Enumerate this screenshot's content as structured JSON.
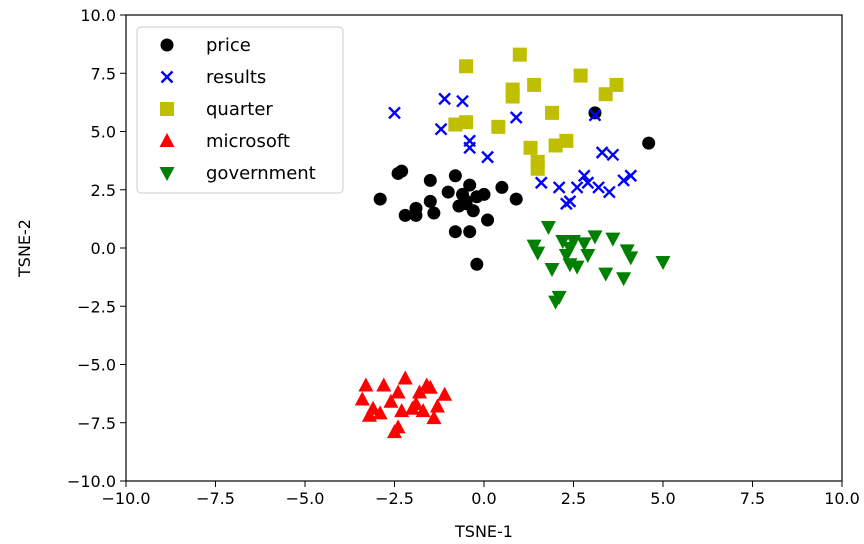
{
  "chart_data": {
    "type": "scatter",
    "title": "",
    "xlabel": "TSNE-1",
    "ylabel": "TSNE-2",
    "xlim": [
      -10.0,
      10.0
    ],
    "ylim": [
      -10.0,
      10.0
    ],
    "xticks": [
      "−10.0",
      "−7.5",
      "−5.0",
      "−2.5",
      "0.0",
      "2.5",
      "5.0",
      "7.5",
      "10.0"
    ],
    "yticks": [
      "−10.0",
      "−7.5",
      "−5.0",
      "−2.5",
      "0.0",
      "2.5",
      "5.0",
      "7.5",
      "10.0"
    ],
    "grid": false,
    "legend_position": "top-left",
    "series": [
      {
        "name": "price",
        "marker": "circle",
        "color": "#000000",
        "points": [
          [
            -2.3,
            3.3
          ],
          [
            -2.4,
            3.2
          ],
          [
            -1.5,
            2.9
          ],
          [
            -0.8,
            3.1
          ],
          [
            -0.4,
            2.7
          ],
          [
            0.5,
            2.6
          ],
          [
            -2.9,
            2.1
          ],
          [
            -1.9,
            1.7
          ],
          [
            -1.5,
            2.0
          ],
          [
            -1.0,
            2.4
          ],
          [
            -0.6,
            2.3
          ],
          [
            -0.2,
            2.2
          ],
          [
            0.0,
            2.3
          ],
          [
            0.9,
            2.1
          ],
          [
            -0.5,
            1.9
          ],
          [
            -0.7,
            1.8
          ],
          [
            -0.3,
            1.6
          ],
          [
            -2.2,
            1.4
          ],
          [
            -1.9,
            1.4
          ],
          [
            -1.4,
            1.5
          ],
          [
            0.1,
            1.2
          ],
          [
            -0.8,
            0.7
          ],
          [
            -0.4,
            0.7
          ],
          [
            -0.2,
            -0.7
          ],
          [
            -0.5,
            2.0
          ],
          [
            3.1,
            5.8
          ],
          [
            4.6,
            4.5
          ]
        ]
      },
      {
        "name": "results",
        "marker": "x",
        "color": "#0000ff",
        "points": [
          [
            -2.5,
            5.8
          ],
          [
            -1.1,
            6.4
          ],
          [
            -0.6,
            6.3
          ],
          [
            0.9,
            5.6
          ],
          [
            3.1,
            5.7
          ],
          [
            -1.2,
            5.1
          ],
          [
            -0.4,
            4.6
          ],
          [
            -0.4,
            4.3
          ],
          [
            0.1,
            3.9
          ],
          [
            3.3,
            4.1
          ],
          [
            3.6,
            4.0
          ],
          [
            1.6,
            2.8
          ],
          [
            2.1,
            2.6
          ],
          [
            2.6,
            2.6
          ],
          [
            2.9,
            2.8
          ],
          [
            3.2,
            2.6
          ],
          [
            2.8,
            3.1
          ],
          [
            3.5,
            2.4
          ],
          [
            3.9,
            2.9
          ],
          [
            4.1,
            3.1
          ],
          [
            2.3,
            1.9
          ],
          [
            2.4,
            2.0
          ]
        ]
      },
      {
        "name": "quarter",
        "marker": "square",
        "color": "#bfbf00",
        "points": [
          [
            -0.5,
            7.8
          ],
          [
            1.0,
            8.3
          ],
          [
            2.7,
            7.4
          ],
          [
            1.4,
            7.0
          ],
          [
            3.7,
            7.0
          ],
          [
            3.4,
            6.6
          ],
          [
            0.8,
            6.8
          ],
          [
            0.8,
            6.5
          ],
          [
            -0.5,
            5.4
          ],
          [
            -0.8,
            5.3
          ],
          [
            0.4,
            5.2
          ],
          [
            1.9,
            5.8
          ],
          [
            1.3,
            4.3
          ],
          [
            2.0,
            4.4
          ],
          [
            2.3,
            4.6
          ],
          [
            1.5,
            3.7
          ],
          [
            1.5,
            3.4
          ]
        ]
      },
      {
        "name": "microsoft",
        "marker": "triangle-up",
        "color": "#ff0000",
        "points": [
          [
            -2.2,
            -5.6
          ],
          [
            -1.6,
            -5.9
          ],
          [
            -1.5,
            -6.0
          ],
          [
            -2.8,
            -5.9
          ],
          [
            -3.3,
            -5.9
          ],
          [
            -2.4,
            -6.2
          ],
          [
            -1.8,
            -6.2
          ],
          [
            -1.1,
            -6.3
          ],
          [
            -3.4,
            -6.5
          ],
          [
            -2.6,
            -6.6
          ],
          [
            -1.9,
            -6.7
          ],
          [
            -1.3,
            -6.8
          ],
          [
            -3.1,
            -6.9
          ],
          [
            -2.3,
            -7.0
          ],
          [
            -2.0,
            -6.9
          ],
          [
            -1.7,
            -7.0
          ],
          [
            -2.9,
            -7.1
          ],
          [
            -3.2,
            -7.2
          ],
          [
            -1.4,
            -7.3
          ],
          [
            -2.5,
            -7.9
          ],
          [
            -2.4,
            -7.7
          ]
        ]
      },
      {
        "name": "government",
        "marker": "triangle-down",
        "color": "#008000",
        "points": [
          [
            1.8,
            0.9
          ],
          [
            3.1,
            0.5
          ],
          [
            3.6,
            0.4
          ],
          [
            2.2,
            0.3
          ],
          [
            2.5,
            0.3
          ],
          [
            2.8,
            0.2
          ],
          [
            1.4,
            0.1
          ],
          [
            2.4,
            0.0
          ],
          [
            4.0,
            -0.1
          ],
          [
            1.5,
            -0.2
          ],
          [
            2.3,
            -0.3
          ],
          [
            2.9,
            -0.3
          ],
          [
            4.1,
            -0.4
          ],
          [
            5.0,
            -0.6
          ],
          [
            2.4,
            -0.7
          ],
          [
            2.6,
            -0.8
          ],
          [
            1.9,
            -0.9
          ],
          [
            3.4,
            -1.1
          ],
          [
            3.9,
            -1.3
          ],
          [
            2.1,
            -2.1
          ],
          [
            2.0,
            -2.3
          ]
        ]
      }
    ]
  }
}
